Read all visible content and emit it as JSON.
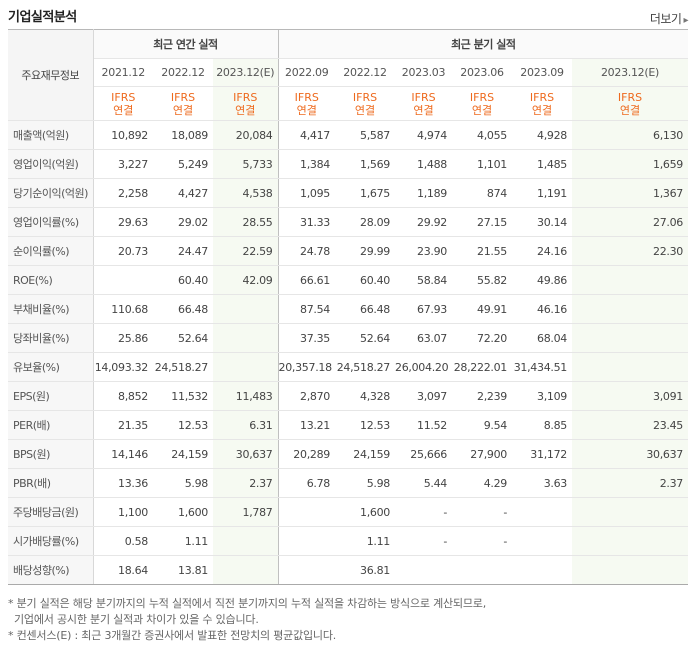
{
  "header": {
    "title": "기업실적분석",
    "more_label": "더보기",
    "more_arrow": "▸"
  },
  "table": {
    "row_header_label": "주요재무정보",
    "annual_group_label": "최근 연간 실적",
    "quarter_group_label": "최근 분기 실적",
    "periods": [
      "2021.12",
      "2022.12",
      "2023.12(E)",
      "2022.09",
      "2022.12",
      "2023.03",
      "2023.06",
      "2023.09",
      "2023.12(E)"
    ],
    "ifrs_top": [
      "IFRS",
      "IFRS",
      "IFRS",
      "IFRS",
      "IFRS",
      "IFRS",
      "IFRS",
      "IFRS",
      "IFRS"
    ],
    "ifrs_bottom": [
      "연결",
      "연결",
      "연결",
      "연결",
      "연결",
      "연결",
      "연결",
      "연결",
      "연결"
    ],
    "rows": [
      {
        "label": "매출액(억원)",
        "values": [
          "10,892",
          "18,089",
          "20,084",
          "4,417",
          "5,587",
          "4,974",
          "4,055",
          "4,928",
          "6,130"
        ]
      },
      {
        "label": "영업이익(억원)",
        "values": [
          "3,227",
          "5,249",
          "5,733",
          "1,384",
          "1,569",
          "1,488",
          "1,101",
          "1,485",
          "1,659"
        ]
      },
      {
        "label": "당기순이익(억원)",
        "values": [
          "2,258",
          "4,427",
          "4,538",
          "1,095",
          "1,675",
          "1,189",
          "874",
          "1,191",
          "1,367"
        ]
      },
      {
        "label": "영업이익률(%)",
        "values": [
          "29.63",
          "29.02",
          "28.55",
          "31.33",
          "28.09",
          "29.92",
          "27.15",
          "30.14",
          "27.06"
        ]
      },
      {
        "label": "순이익률(%)",
        "values": [
          "20.73",
          "24.47",
          "22.59",
          "24.78",
          "29.99",
          "23.90",
          "21.55",
          "24.16",
          "22.30"
        ]
      },
      {
        "label": "ROE(%)",
        "values": [
          "",
          "60.40",
          "42.09",
          "66.61",
          "60.40",
          "58.84",
          "55.82",
          "49.86",
          ""
        ]
      },
      {
        "label": "부채비율(%)",
        "values": [
          "110.68",
          "66.48",
          "",
          "87.54",
          "66.48",
          "67.93",
          "49.91",
          "46.16",
          ""
        ]
      },
      {
        "label": "당좌비율(%)",
        "values": [
          "25.86",
          "52.64",
          "",
          "37.35",
          "52.64",
          "63.07",
          "72.20",
          "68.04",
          ""
        ]
      },
      {
        "label": "유보율(%)",
        "values": [
          "14,093.32",
          "24,518.27",
          "",
          "20,357.18",
          "24,518.27",
          "26,004.20",
          "28,222.01",
          "31,434.51",
          ""
        ]
      },
      {
        "label": "EPS(원)",
        "values": [
          "8,852",
          "11,532",
          "11,483",
          "2,870",
          "4,328",
          "3,097",
          "2,239",
          "3,109",
          "3,091"
        ]
      },
      {
        "label": "PER(배)",
        "values": [
          "21.35",
          "12.53",
          "6.31",
          "13.21",
          "12.53",
          "11.52",
          "9.54",
          "8.85",
          "23.45"
        ]
      },
      {
        "label": "BPS(원)",
        "values": [
          "14,146",
          "24,159",
          "30,637",
          "20,289",
          "24,159",
          "25,666",
          "27,900",
          "31,172",
          "30,637"
        ]
      },
      {
        "label": "PBR(배)",
        "values": [
          "13.36",
          "5.98",
          "2.37",
          "6.78",
          "5.98",
          "5.44",
          "4.29",
          "3.63",
          "2.37"
        ]
      },
      {
        "label": "주당배당금(원)",
        "values": [
          "1,100",
          "1,600",
          "1,787",
          "",
          "1,600",
          "-",
          "-",
          "",
          ""
        ]
      },
      {
        "label": "시가배당률(%)",
        "values": [
          "0.58",
          "1.11",
          "",
          "",
          "1.11",
          "-",
          "-",
          "",
          ""
        ]
      },
      {
        "label": "배당성향(%)",
        "values": [
          "18.64",
          "13.81",
          "",
          "",
          "36.81",
          "",
          "",
          "",
          ""
        ]
      }
    ]
  },
  "notes": [
    "* 분기 실적은 해당 분기까지의 누적 실적에서 직전 분기까지의 누적 실적을 차감하는 방식으로 계산되므로,",
    "  기업에서 공시한 분기 실적과 차이가 있을 수 있습니다.",
    "* 컨센서스(E) : 최근 3개월간 증권사에서 발표한 전망치의 평균값입니다."
  ]
}
